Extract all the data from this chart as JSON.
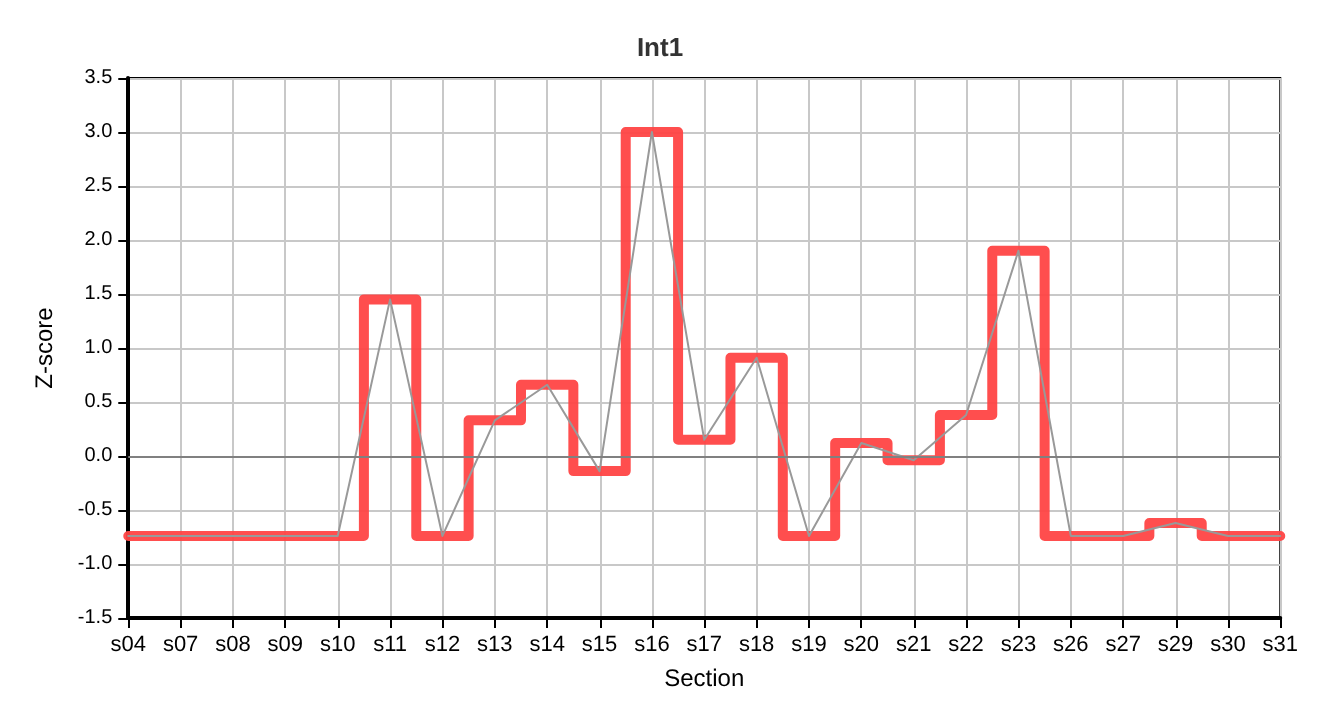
{
  "chart_data": {
    "type": "line",
    "title": "Int1",
    "xlabel": "Section",
    "ylabel": "Z-score",
    "categories": [
      "s04",
      "s07",
      "s08",
      "s09",
      "s10",
      "s11",
      "s12",
      "s13",
      "s14",
      "s15",
      "s16",
      "s17",
      "s18",
      "s19",
      "s20",
      "s21",
      "s22",
      "s23",
      "s26",
      "s27",
      "s29",
      "s30",
      "s31"
    ],
    "series": [
      {
        "type": "step",
        "color": "#ff4444",
        "values": [
          -0.74,
          -0.74,
          -0.74,
          -0.74,
          -0.74,
          1.45,
          -0.74,
          0.33,
          0.66,
          -0.14,
          3.0,
          0.15,
          0.91,
          -0.74,
          0.12,
          -0.04,
          0.38,
          1.9,
          -0.74,
          -0.74,
          -0.62,
          -0.74,
          -0.74
        ]
      },
      {
        "color": "#999999",
        "values": [
          -0.74,
          -0.74,
          -0.74,
          -0.74,
          -0.74,
          1.45,
          -0.74,
          0.33,
          0.66,
          -0.14,
          3.0,
          0.15,
          0.91,
          -0.74,
          0.12,
          -0.04,
          0.38,
          1.9,
          -0.74,
          -0.74,
          -0.62,
          -0.74,
          -0.74
        ]
      }
    ],
    "ylim": [
      -1.5,
      3.5
    ],
    "yticks": [
      {
        "value": -1.5,
        "label": "-1.5"
      },
      {
        "value": -1,
        "label": "-1.0"
      },
      {
        "value": -0.5,
        "label": "-0.5"
      },
      {
        "value": 0,
        "label": "0.0"
      },
      {
        "value": 0.5,
        "label": "0.5"
      },
      {
        "value": 1,
        "label": "1.0"
      },
      {
        "value": 1.5,
        "label": "1.5"
      },
      {
        "value": 2,
        "label": "2.0"
      },
      {
        "value": 2.5,
        "label": "2.5"
      },
      {
        "value": 3,
        "label": "3.0"
      },
      {
        "value": 3.5,
        "label": "3.5"
      }
    ],
    "ref_lines": [
      {
        "axis": "y",
        "value": 0,
        "color": "#808080"
      }
    ],
    "grid": true,
    "marker": "none"
  }
}
